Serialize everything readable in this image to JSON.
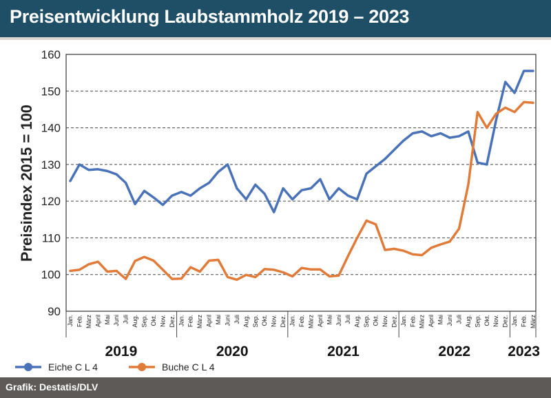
{
  "header": {
    "title": "Preisentwicklung Laubstammholz 2019 – 2023"
  },
  "footer": {
    "source": "Grafik: Destatis/DLV"
  },
  "colors": {
    "header_bg": "#1f4f66",
    "eiche": "#4a72b8",
    "buche": "#e07b39",
    "grid": "#333333"
  },
  "chart_data": {
    "type": "line",
    "title": "",
    "ylabel": "Preisindex 2015 = 100",
    "xlabel": "",
    "ylim": [
      90,
      160
    ],
    "yticks": [
      90,
      100,
      110,
      120,
      130,
      140,
      150,
      160
    ],
    "grid": true,
    "legend_position": "bottom-left",
    "x": [
      "Jan.",
      "Feb.",
      "März",
      "April",
      "Mai",
      "Juni",
      "Juli",
      "Aug.",
      "Sep.",
      "Okt.",
      "Nov.",
      "Dez.",
      "Jan.",
      "Feb.",
      "März",
      "April",
      "Mai",
      "Juni",
      "Juli",
      "Aug.",
      "Sep.",
      "Okt.",
      "Nov.",
      "Dez.",
      "Jan.",
      "Feb.",
      "März",
      "April",
      "Mai",
      "Juni",
      "Juli",
      "Aug.",
      "Sep.",
      "Okt.",
      "Nov.",
      "Dez.",
      "Jan.",
      "Feb.",
      "März",
      "April",
      "Mai",
      "Juni",
      "Juli",
      "Aug.",
      "Sep.",
      "Okt.",
      "Nov.",
      "Dez.",
      "Jan.",
      "Feb.",
      "März"
    ],
    "years": [
      {
        "label": "2019",
        "start": 0,
        "end": 11
      },
      {
        "label": "2020",
        "start": 12,
        "end": 23
      },
      {
        "label": "2021",
        "start": 24,
        "end": 35
      },
      {
        "label": "2022",
        "start": 36,
        "end": 47
      },
      {
        "label": "2023",
        "start": 48,
        "end": 50
      }
    ],
    "series": [
      {
        "name": "Eiche C L 4",
        "color": "#4a72b8",
        "values": [
          125.5,
          130,
          128.5,
          128.7,
          128.2,
          127.3,
          125,
          119.2,
          122.8,
          121,
          119,
          121.5,
          122.5,
          121.5,
          123.5,
          125,
          128,
          130,
          123.5,
          120.5,
          124.5,
          122,
          117,
          123.5,
          120.5,
          123,
          123.5,
          126,
          120.5,
          123.5,
          121.5,
          120.5,
          127.5,
          129.5,
          131.5,
          134,
          136.5,
          138.5,
          139,
          137.7,
          138.5,
          137.3,
          137.7,
          139,
          130.5,
          130,
          142,
          152.5,
          149.5,
          155.5,
          155.5
        ]
      },
      {
        "name": "Buche C L 4",
        "color": "#e07b39",
        "values": [
          101,
          101.3,
          102.8,
          103.5,
          100.8,
          101,
          98.8,
          103.7,
          104.8,
          103.8,
          101.3,
          98.8,
          98.9,
          102,
          100.8,
          103.8,
          104,
          99.3,
          98.6,
          99.9,
          99.3,
          101.5,
          101.3,
          100.6,
          99.5,
          101.8,
          101.4,
          101.4,
          99.5,
          99.7,
          105,
          110,
          114.7,
          113.7,
          106.7,
          107,
          106.5,
          105.5,
          105.3,
          107.3,
          108.2,
          109,
          112.5,
          124.5,
          144.3,
          140,
          143.8,
          145.5,
          144.3,
          147,
          146.8
        ]
      }
    ]
  }
}
